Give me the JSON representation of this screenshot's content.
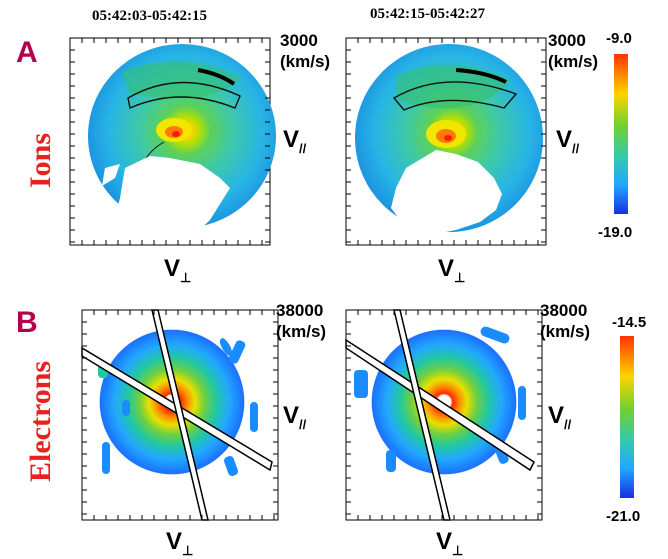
{
  "panels": [
    {
      "letter": "A",
      "species": "Ions",
      "colorbar_max": "-9.0",
      "colorbar_min": "-19.0",
      "velocity_scale": "3000",
      "velocity_unit": "(km/s)"
    },
    {
      "letter": "B",
      "species": "Electrons",
      "colorbar_max": "-14.5",
      "colorbar_min": "-21.0",
      "velocity_scale": "38000",
      "velocity_unit": "(km/s)"
    }
  ],
  "time_intervals": [
    "05:42:03-05:42:15",
    "05:42:15-05:42:27"
  ],
  "axis_labels": {
    "v_parallel": "V",
    "v_parallel_sub": "//",
    "v_perp": "V",
    "v_perp_sub": "⊥"
  },
  "colors": {
    "panel_letter": "#b5004e",
    "row_label": "#e8201f"
  }
}
